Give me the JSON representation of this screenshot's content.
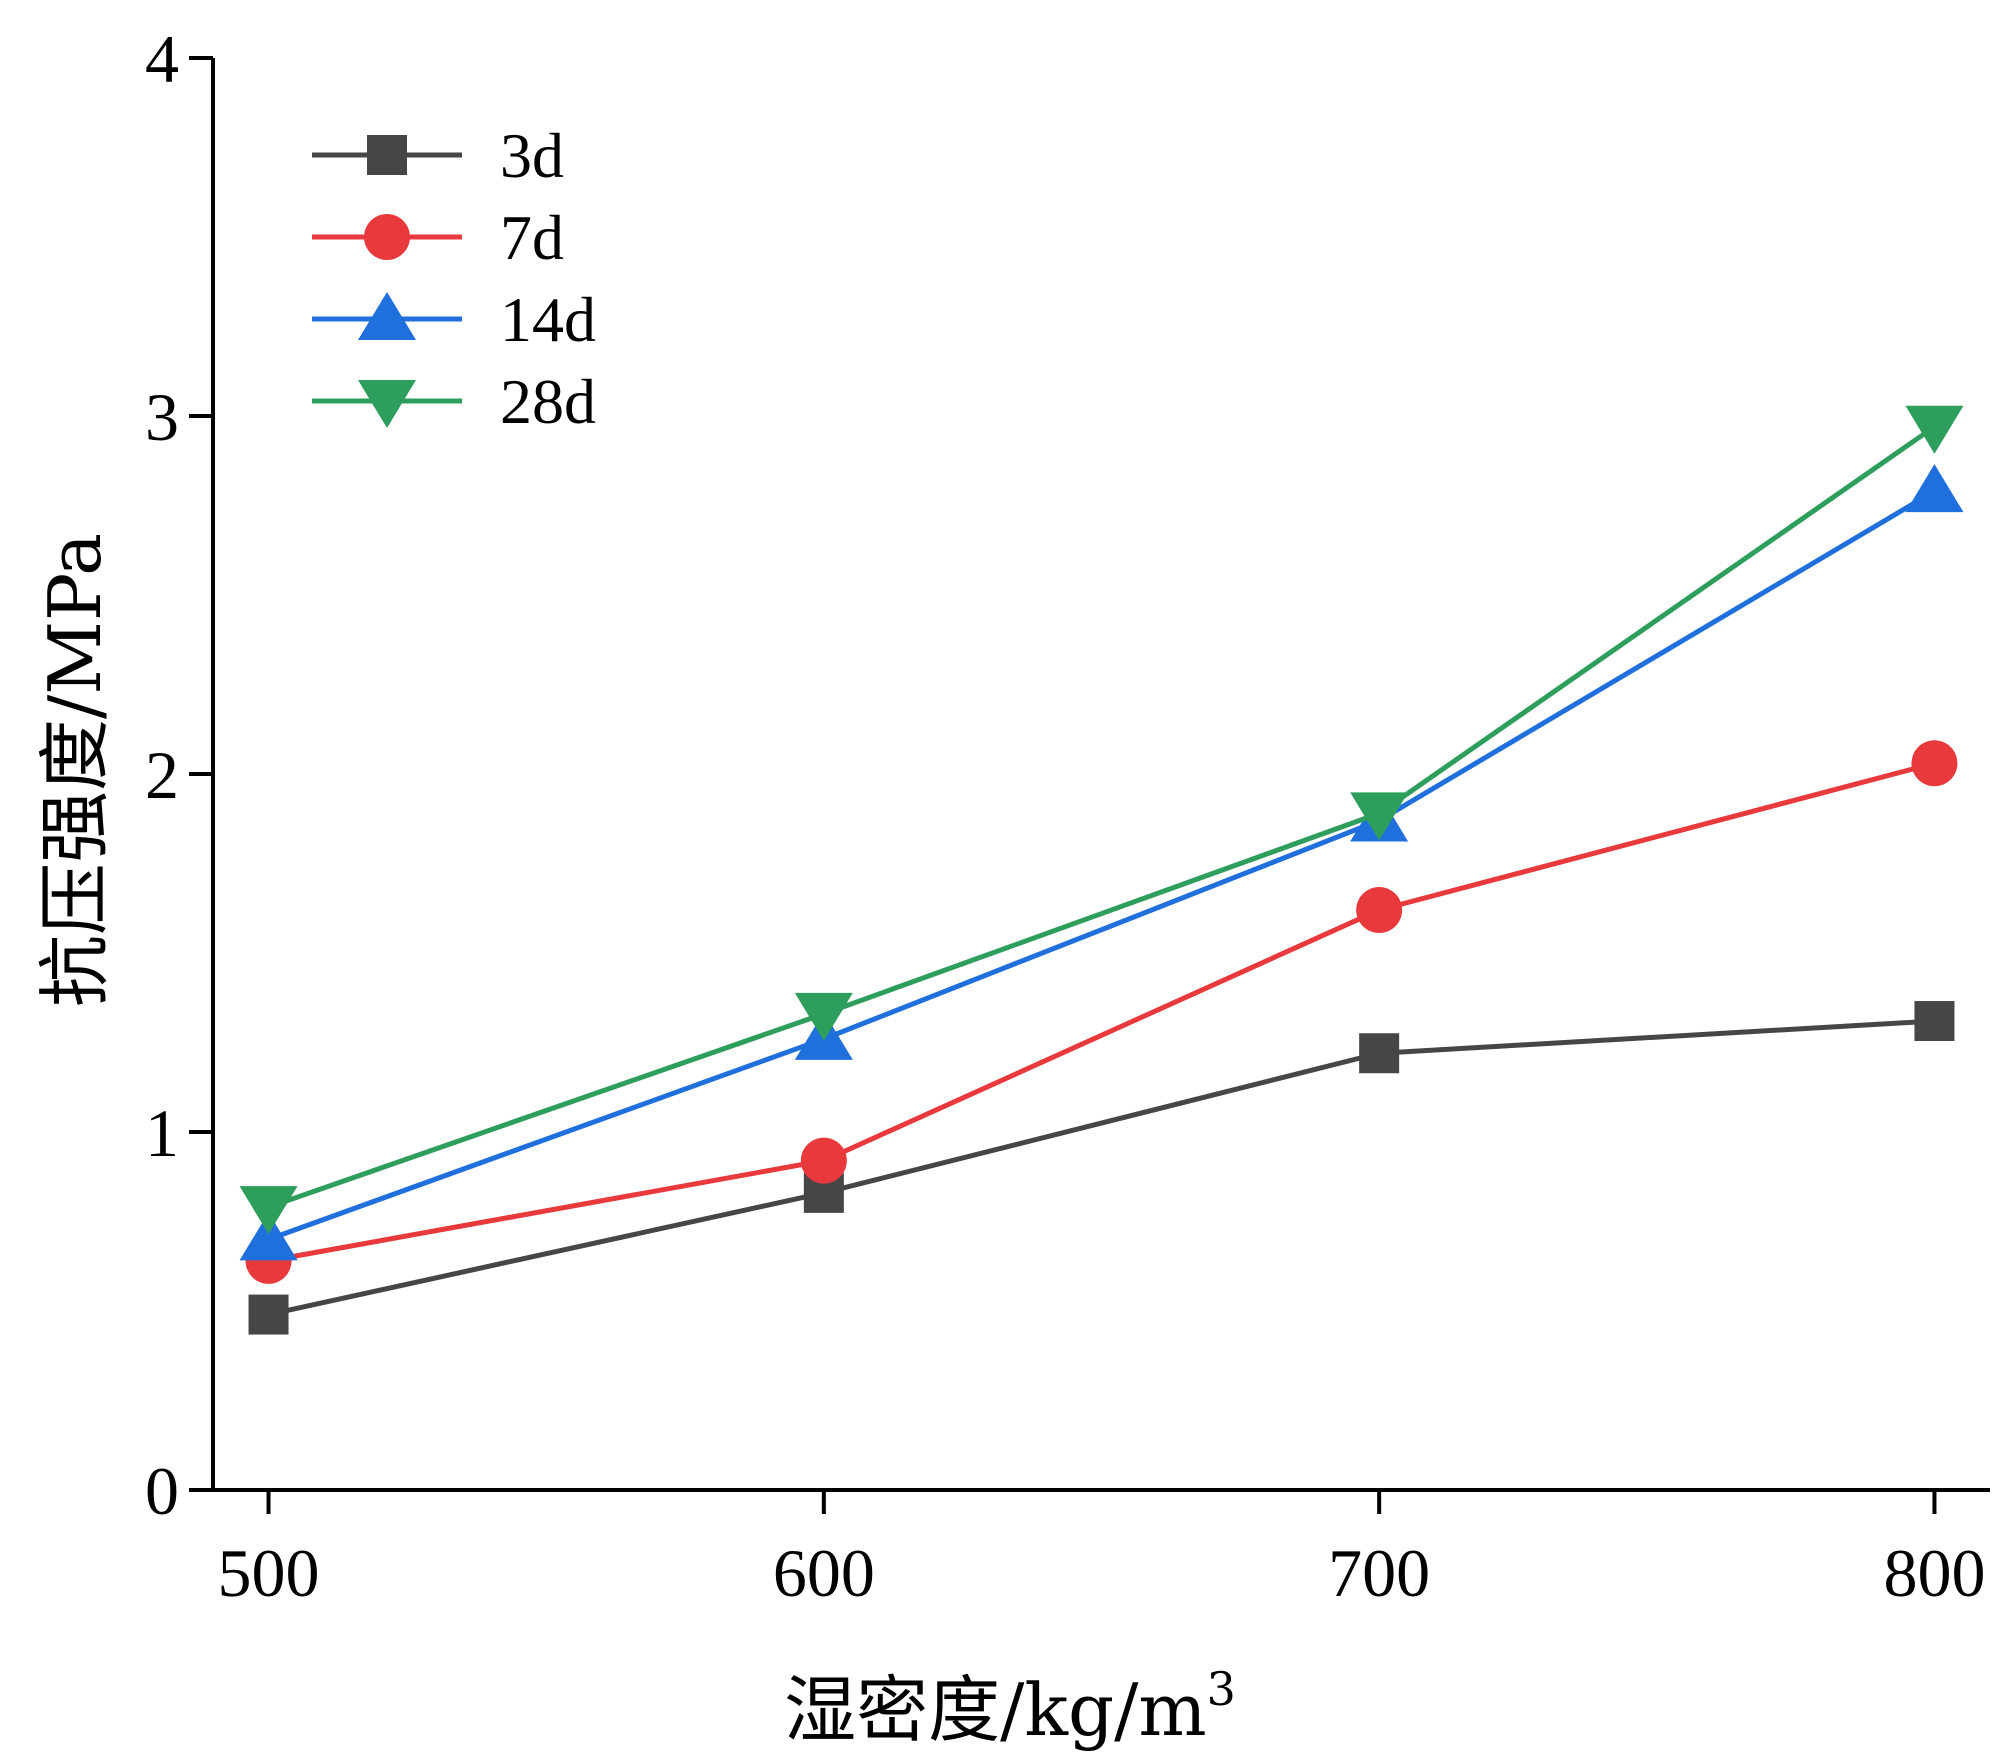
{
  "chart_data": {
    "type": "line",
    "title": "",
    "xlabel": "湿密度/kg/m",
    "xlabel_superscript": "3",
    "ylabel": "抗压强度/MPa",
    "x": [
      500,
      600,
      700,
      800
    ],
    "xticks": [
      "500",
      "600",
      "700",
      "800"
    ],
    "yticks": [
      "0",
      "1",
      "2",
      "3",
      "4"
    ],
    "xlim": [
      490,
      810
    ],
    "ylim": [
      0,
      4
    ],
    "grid": false,
    "legend_position": "top-left",
    "series": [
      {
        "name": "3d",
        "marker": "square",
        "color": "#464646",
        "values": [
          0.49,
          0.83,
          1.22,
          1.31
        ]
      },
      {
        "name": "7d",
        "marker": "circle",
        "color": "#e8393c",
        "values": [
          0.64,
          0.92,
          1.62,
          2.03
        ]
      },
      {
        "name": "14d",
        "marker": "triangle-up",
        "color": "#1f6fdc",
        "values": [
          0.7,
          1.26,
          1.87,
          2.79
        ]
      },
      {
        "name": "28d",
        "marker": "triangle-down",
        "color": "#2e9e5c",
        "values": [
          0.79,
          1.33,
          1.89,
          2.97
        ]
      }
    ]
  }
}
